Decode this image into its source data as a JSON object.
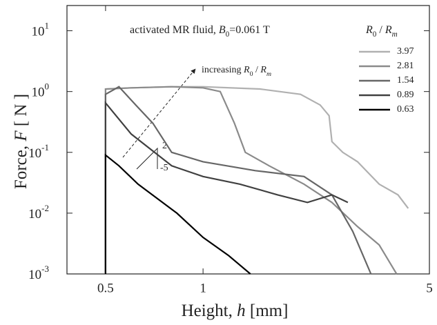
{
  "chart_data": {
    "type": "line",
    "annotation": [
      {
        "text": "activated MR fluid, "
      },
      {
        "text": "B",
        "style": "italic"
      },
      {
        "text": "0",
        "style": "sub"
      },
      {
        "text": "=0.061 T"
      }
    ],
    "arrow_label": [
      {
        "text": "increasing "
      },
      {
        "text": "R",
        "style": "italic"
      },
      {
        "text": "0",
        "style": "sub"
      },
      {
        "text": " / "
      },
      {
        "text": "R",
        "style": "italic"
      },
      {
        "text": "m",
        "style": "sub italic"
      }
    ],
    "legend_title": [
      {
        "text": "R",
        "style": "italic"
      },
      {
        "text": "0",
        "style": "sub"
      },
      {
        "text": " / "
      },
      {
        "text": "R",
        "style": "italic"
      },
      {
        "text": "m",
        "style": "sub italic"
      }
    ],
    "slope_labels": [
      "2",
      "-5"
    ],
    "x_label": [
      {
        "text": "Height,  "
      },
      {
        "text": "h",
        "style": "italic"
      },
      {
        "text": "  [mm]"
      }
    ],
    "y_label": [
      {
        "text": "Force,  "
      },
      {
        "text": "F",
        "style": "italic"
      },
      {
        "text": "  [ N ]"
      }
    ],
    "log_x": true,
    "log_y": true,
    "xlim": [
      0.38,
      5
    ],
    "xticks": [
      0.5,
      1,
      5
    ],
    "ylim": [
      0.001,
      26
    ],
    "yticks": [
      {
        "value": 0.001,
        "label": "10",
        "exponent": "-3"
      },
      {
        "value": 0.01,
        "label": "10",
        "exponent": "-2"
      },
      {
        "value": 0.1,
        "label": "10",
        "exponent": "-1"
      },
      {
        "value": 1,
        "label": "10",
        "exponent": "0"
      },
      {
        "value": 10,
        "label": "10",
        "exponent": "1"
      }
    ],
    "series": [
      {
        "name": "3.97",
        "color": "#b0b0b0",
        "x": [
          0.5,
          0.5,
          0.6,
          0.8,
          1.0,
          1.5,
          2.0,
          2.3,
          2.45,
          2.5,
          2.7,
          3.0,
          3.5,
          4.0,
          4.3
        ],
        "values": [
          0.001,
          1.1,
          1.15,
          1.2,
          1.2,
          1.1,
          0.9,
          0.6,
          0.4,
          0.15,
          0.1,
          0.07,
          0.03,
          0.02,
          0.012
        ]
      },
      {
        "name": "2.81",
        "color": "#8a8a8a",
        "x": [
          0.5,
          0.5,
          0.6,
          0.8,
          1.0,
          1.13,
          1.25,
          1.35,
          1.6,
          2.05,
          2.5,
          3.0,
          3.5,
          3.96
        ],
        "values": [
          0.001,
          1.1,
          1.15,
          1.2,
          1.15,
          1.0,
          0.3,
          0.1,
          0.06,
          0.03,
          0.015,
          0.006,
          0.003,
          0.001
        ]
      },
      {
        "name": "1.54",
        "color": "#666666",
        "x": [
          0.5,
          0.5,
          0.55,
          0.62,
          0.7,
          0.8,
          1.0,
          1.45,
          2.05,
          2.5,
          2.9,
          3.3
        ],
        "values": [
          0.001,
          0.9,
          1.2,
          0.6,
          0.3,
          0.1,
          0.07,
          0.05,
          0.04,
          0.02,
          0.005,
          0.001
        ]
      },
      {
        "name": "0.89",
        "color": "#404040",
        "x": [
          0.5,
          0.5,
          0.6,
          0.8,
          1.0,
          1.3,
          1.7,
          2.1,
          2.5,
          2.8
        ],
        "values": [
          0.001,
          0.65,
          0.2,
          0.06,
          0.04,
          0.03,
          0.02,
          0.015,
          0.02,
          0.015
        ]
      },
      {
        "name": "0.63",
        "color": "#000000",
        "x": [
          0.5,
          0.5,
          0.55,
          0.63,
          0.83,
          1.0,
          1.2,
          1.4
        ],
        "values": [
          0.001,
          0.09,
          0.06,
          0.03,
          0.01,
          0.004,
          0.002,
          0.001
        ]
      }
    ]
  }
}
